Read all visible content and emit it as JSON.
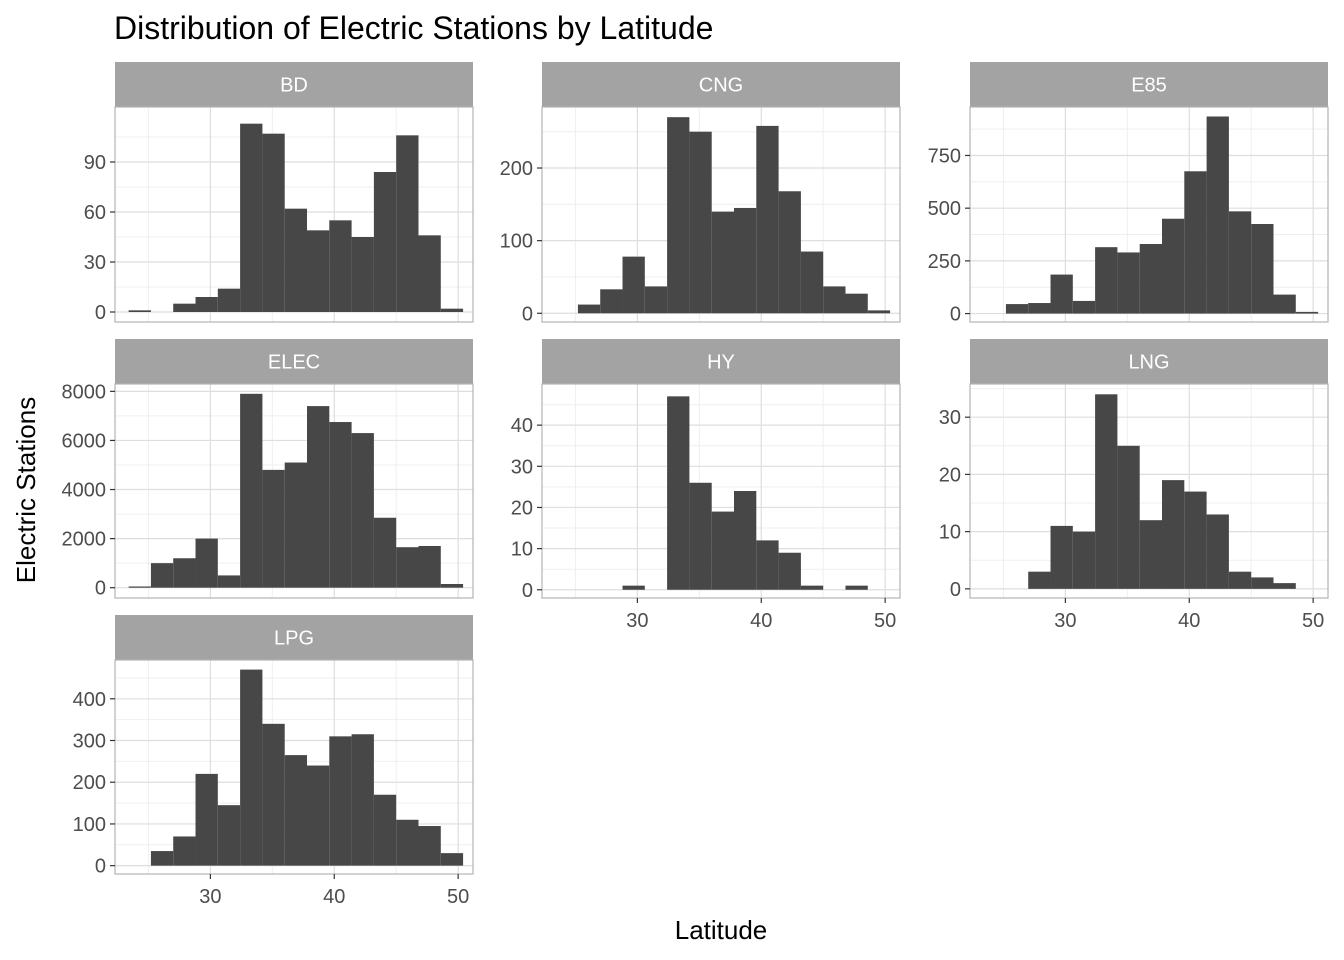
{
  "chart_data": {
    "type": "bar",
    "title": "Distribution of Electric Stations by Latitude",
    "xlabel": "Latitude",
    "ylabel": "Electric Stations",
    "xlim": [
      22.3,
      51.2
    ],
    "x_ticks": [
      30,
      40,
      50
    ],
    "bin_width": 1.8,
    "bin_starts": [
      23.4,
      25.2,
      27.0,
      28.8,
      30.6,
      32.4,
      34.2,
      36.0,
      37.8,
      39.6,
      41.4,
      43.2,
      45.0,
      46.8,
      48.6
    ],
    "grid": true,
    "facets": [
      {
        "name": "BD",
        "values": [
          1,
          0,
          5,
          9,
          14,
          113,
          107,
          62,
          49,
          55,
          45,
          84,
          106,
          46,
          2
        ],
        "ylim": [
          -6,
          123
        ],
        "y_ticks": [
          0,
          30,
          60,
          90
        ]
      },
      {
        "name": "CNG",
        "values": [
          0,
          12,
          33,
          78,
          37,
          270,
          250,
          140,
          145,
          258,
          168,
          85,
          37,
          27,
          4
        ],
        "ylim": [
          -12,
          284
        ],
        "y_ticks": [
          0,
          100,
          200
        ]
      },
      {
        "name": "E85",
        "values": [
          0,
          45,
          50,
          185,
          60,
          315,
          290,
          330,
          450,
          675,
          935,
          485,
          425,
          90,
          8
        ],
        "ylim": [
          -40,
          980
        ],
        "y_ticks": [
          0,
          250,
          500,
          750
        ]
      },
      {
        "name": "ELEC",
        "values": [
          50,
          1000,
          1200,
          2000,
          500,
          7900,
          4800,
          5100,
          7400,
          6750,
          6300,
          2850,
          1650,
          1700,
          150
        ],
        "ylim": [
          -420,
          8300
        ],
        "y_ticks": [
          0,
          2000,
          4000,
          6000,
          8000
        ]
      },
      {
        "name": "HY",
        "values": [
          0,
          0,
          0,
          1,
          0,
          47,
          26,
          19,
          24,
          12,
          9,
          1,
          0,
          1,
          0
        ],
        "ylim": [
          -2,
          50
        ],
        "y_ticks": [
          0,
          10,
          20,
          30,
          40
        ]
      },
      {
        "name": "LNG",
        "values": [
          0,
          0,
          3,
          11,
          10,
          34,
          25,
          12,
          19,
          17,
          13,
          3,
          2,
          1,
          0
        ],
        "ylim": [
          -1.6,
          35.8
        ],
        "y_ticks": [
          0,
          10,
          20,
          30
        ]
      },
      {
        "name": "LPG",
        "values": [
          0,
          35,
          70,
          220,
          145,
          470,
          340,
          265,
          240,
          310,
          315,
          170,
          110,
          95,
          30
        ],
        "ylim": [
          -20,
          493
        ],
        "y_ticks": [
          0,
          100,
          200,
          300,
          400
        ]
      }
    ],
    "colors": {
      "bar": "#474747",
      "strip": "#a3a3a3",
      "panel_border": "#b3b3b3",
      "grid_major": "#dedede",
      "grid_minor": "#efefef",
      "tick_text": "#4d4d4d"
    }
  }
}
